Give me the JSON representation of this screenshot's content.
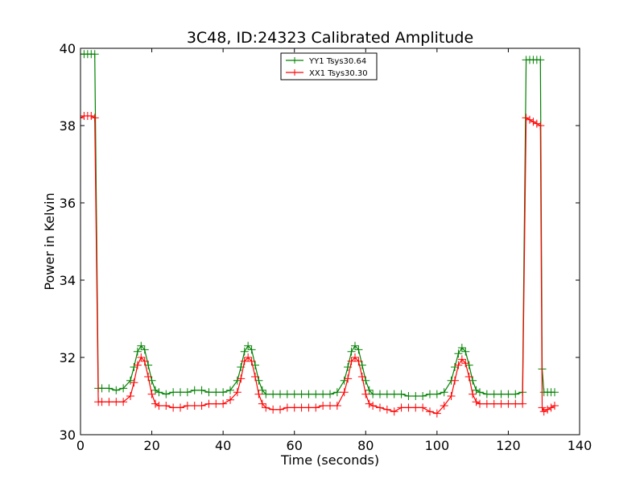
{
  "chart_data": {
    "type": "line",
    "title": "3C48, ID:24323 Calibrated Amplitude",
    "xlabel": "Time (seconds)",
    "ylabel": "Power in Kelvin",
    "xlim": [
      0,
      140
    ],
    "ylim": [
      30,
      40
    ],
    "xticks": [
      0,
      20,
      40,
      60,
      80,
      100,
      120,
      140
    ],
    "yticks": [
      30,
      32,
      34,
      36,
      38,
      40
    ],
    "grid": false,
    "legend_position": "top-center",
    "series": [
      {
        "name": "YY1 Tsys30.64",
        "color": "#008000",
        "marker": "plus",
        "x": [
          0,
          1,
          2,
          3,
          4,
          5,
          6,
          8,
          10,
          12,
          14,
          15,
          16,
          17,
          18,
          19,
          20,
          21,
          22,
          24,
          26,
          28,
          30,
          32,
          34,
          36,
          38,
          40,
          42,
          44,
          45,
          46,
          47,
          48,
          49,
          50,
          51,
          52,
          54,
          56,
          58,
          60,
          62,
          64,
          66,
          68,
          70,
          72,
          74,
          75,
          76,
          77,
          78,
          79,
          80,
          81,
          82,
          84,
          86,
          88,
          90,
          92,
          94,
          96,
          98,
          100,
          102,
          104,
          105,
          106,
          107,
          108,
          109,
          110,
          111,
          112,
          114,
          116,
          118,
          120,
          122,
          124,
          125,
          126,
          127,
          128,
          129,
          129.5,
          130,
          131,
          132,
          133
        ],
        "values": [
          39.85,
          39.85,
          39.85,
          39.85,
          39.85,
          31.2,
          31.2,
          31.2,
          31.15,
          31.2,
          31.4,
          31.75,
          32.15,
          32.3,
          32.2,
          31.8,
          31.4,
          31.15,
          31.1,
          31.05,
          31.1,
          31.1,
          31.1,
          31.15,
          31.15,
          31.1,
          31.1,
          31.1,
          31.15,
          31.4,
          31.75,
          32.15,
          32.3,
          32.2,
          31.8,
          31.4,
          31.15,
          31.05,
          31.05,
          31.05,
          31.05,
          31.05,
          31.05,
          31.05,
          31.05,
          31.05,
          31.05,
          31.1,
          31.4,
          31.75,
          32.15,
          32.3,
          32.2,
          31.8,
          31.4,
          31.15,
          31.05,
          31.05,
          31.05,
          31.05,
          31.05,
          31.0,
          31.0,
          31.0,
          31.05,
          31.05,
          31.1,
          31.4,
          31.75,
          32.1,
          32.25,
          32.15,
          31.8,
          31.4,
          31.15,
          31.1,
          31.05,
          31.05,
          31.05,
          31.05,
          31.05,
          31.1,
          39.7,
          39.7,
          39.7,
          39.7,
          39.7,
          31.7,
          31.1,
          31.1,
          31.1,
          31.1
        ]
      },
      {
        "name": "XX1 Tsys30.30",
        "color": "#ff0000",
        "marker": "plus",
        "x": [
          0,
          1,
          2,
          3,
          4,
          5,
          6,
          8,
          10,
          12,
          14,
          15,
          16,
          17,
          18,
          19,
          20,
          21,
          22,
          24,
          26,
          28,
          30,
          32,
          34,
          36,
          38,
          40,
          42,
          44,
          45,
          46,
          47,
          48,
          49,
          50,
          51,
          52,
          54,
          56,
          58,
          60,
          62,
          64,
          66,
          68,
          70,
          72,
          74,
          75,
          76,
          77,
          78,
          79,
          80,
          81,
          82,
          84,
          86,
          88,
          90,
          92,
          94,
          96,
          98,
          100,
          102,
          104,
          105,
          106,
          107,
          108,
          109,
          110,
          111,
          112,
          114,
          116,
          118,
          120,
          122,
          124,
          125,
          126,
          127,
          128,
          129,
          129.5,
          130,
          131,
          132,
          133
        ],
        "values": [
          38.2,
          38.25,
          38.25,
          38.25,
          38.2,
          30.85,
          30.85,
          30.85,
          30.85,
          30.85,
          31.0,
          31.35,
          31.8,
          32.0,
          31.9,
          31.5,
          31.05,
          30.8,
          30.75,
          30.75,
          30.7,
          30.7,
          30.75,
          30.75,
          30.75,
          30.8,
          30.8,
          30.8,
          30.9,
          31.1,
          31.45,
          31.9,
          32.0,
          31.9,
          31.5,
          31.05,
          30.8,
          30.7,
          30.65,
          30.65,
          30.7,
          30.7,
          30.7,
          30.7,
          30.7,
          30.75,
          30.75,
          30.75,
          31.1,
          31.45,
          31.9,
          32.0,
          31.9,
          31.5,
          31.05,
          30.8,
          30.75,
          30.7,
          30.65,
          30.6,
          30.7,
          30.7,
          30.7,
          30.7,
          30.6,
          30.55,
          30.75,
          31.0,
          31.4,
          31.8,
          31.95,
          31.85,
          31.5,
          31.05,
          30.85,
          30.8,
          30.8,
          30.8,
          30.8,
          30.8,
          30.8,
          30.8,
          38.2,
          38.15,
          38.1,
          38.05,
          38.0,
          30.7,
          30.6,
          30.65,
          30.7,
          30.75
        ]
      }
    ]
  }
}
